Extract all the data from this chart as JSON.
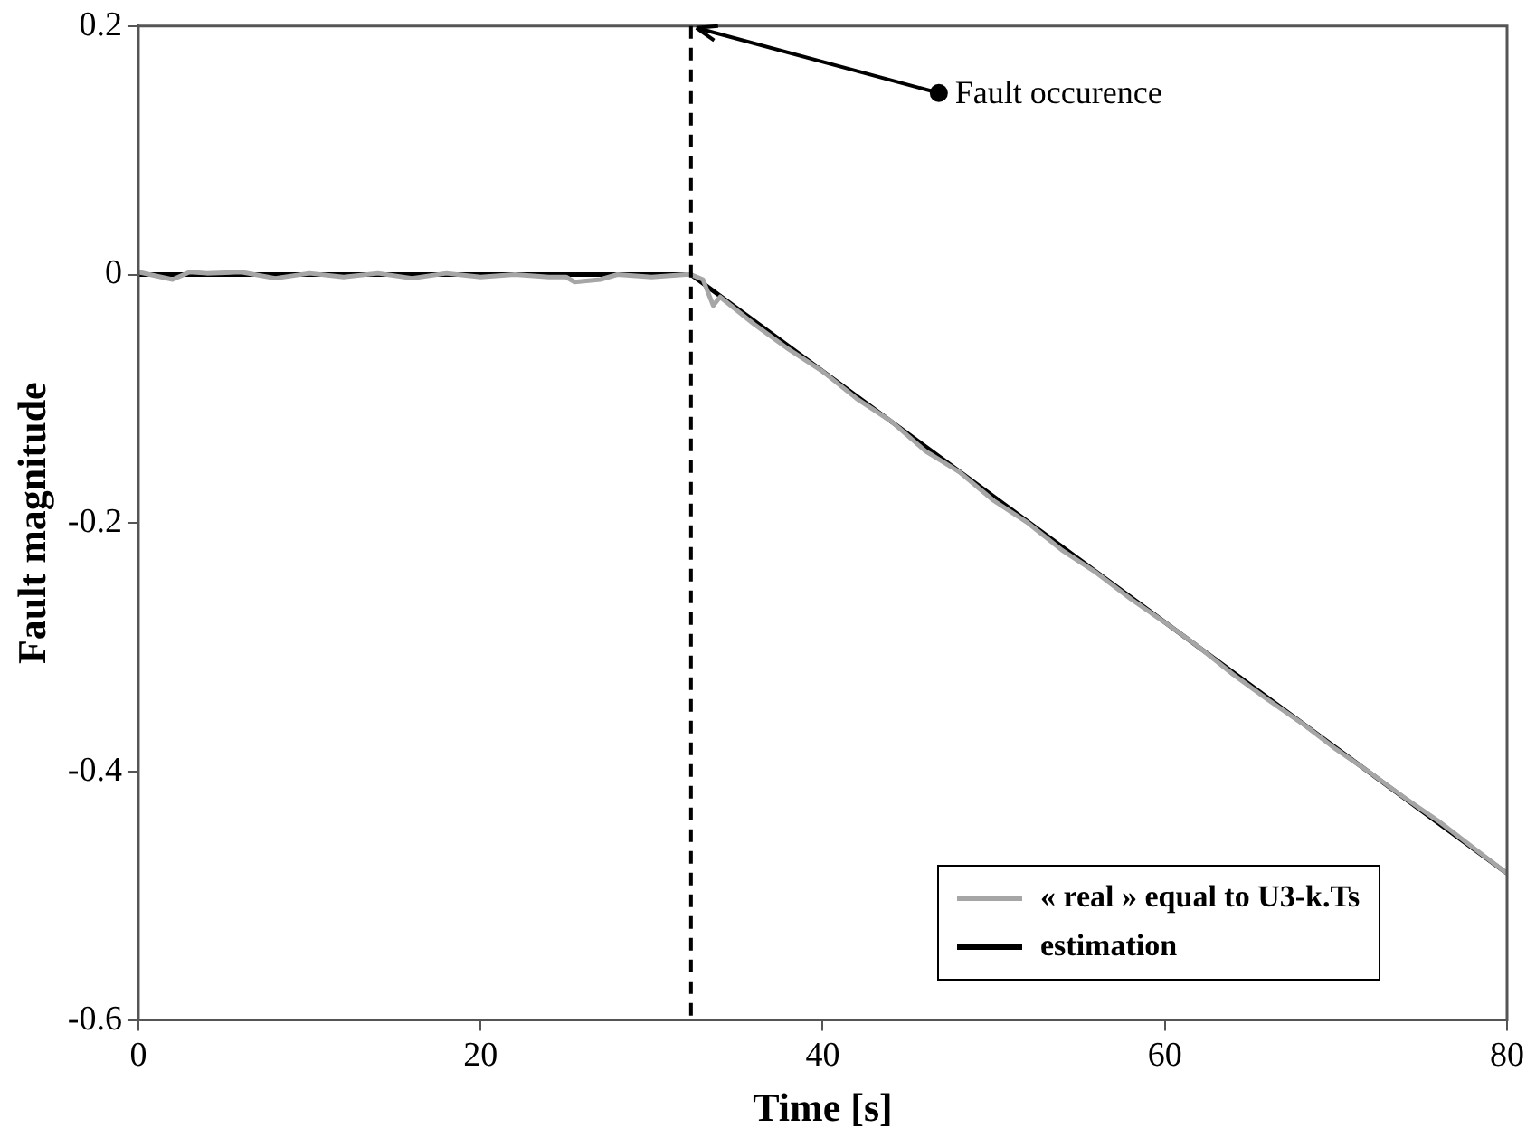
{
  "chart_data": {
    "type": "line",
    "xlabel": "Time [s]",
    "ylabel": "Fault magnitude",
    "xlim": [
      0,
      80
    ],
    "xticks": [
      0,
      20,
      40,
      60,
      80
    ],
    "ylim": [
      -0.6,
      0.2
    ],
    "yticks": [
      -0.6,
      -0.4,
      -0.2,
      0,
      0.2
    ],
    "grid": false,
    "legend": "bottom right",
    "marker": "none",
    "series": [
      {
        "name": "« real » equal to U3-k.Ts",
        "color": "#a6a6a6",
        "x": [
          0,
          2,
          3,
          4,
          6,
          8,
          10,
          12,
          14,
          16,
          18,
          20,
          22,
          24,
          25,
          25.5,
          27,
          28,
          30,
          32,
          32.3,
          33,
          33.6,
          34,
          36,
          38,
          40,
          42,
          44,
          46,
          48,
          50,
          52,
          54,
          56,
          58,
          60,
          62,
          64,
          66,
          68,
          70,
          72,
          74,
          76,
          78,
          80
        ],
        "values": [
          0.002,
          -0.004,
          0.002,
          0.001,
          0.002,
          -0.003,
          0.001,
          -0.002,
          0.001,
          -0.003,
          0.001,
          -0.002,
          0,
          -0.002,
          -0.002,
          -0.006,
          -0.004,
          0,
          -0.002,
          0,
          0,
          -0.004,
          -0.025,
          -0.018,
          -0.04,
          -0.06,
          -0.078,
          -0.1,
          -0.118,
          -0.142,
          -0.159,
          -0.182,
          -0.2,
          -0.222,
          -0.24,
          -0.261,
          -0.28,
          -0.3,
          -0.322,
          -0.342,
          -0.361,
          -0.382,
          -0.401,
          -0.421,
          -0.44,
          -0.461,
          -0.482
        ]
      },
      {
        "name": "estimation",
        "color": "#000000",
        "x": [
          0,
          32.3,
          80
        ],
        "values": [
          0,
          0,
          -0.482
        ]
      }
    ],
    "ref_lines": [
      {
        "axis": "x",
        "value": 32.3,
        "color": "#000000",
        "line_style": "dashed"
      }
    ],
    "annotations": [
      {
        "text": "Fault occurence",
        "x": 32.3,
        "y": 0.2
      }
    ]
  }
}
